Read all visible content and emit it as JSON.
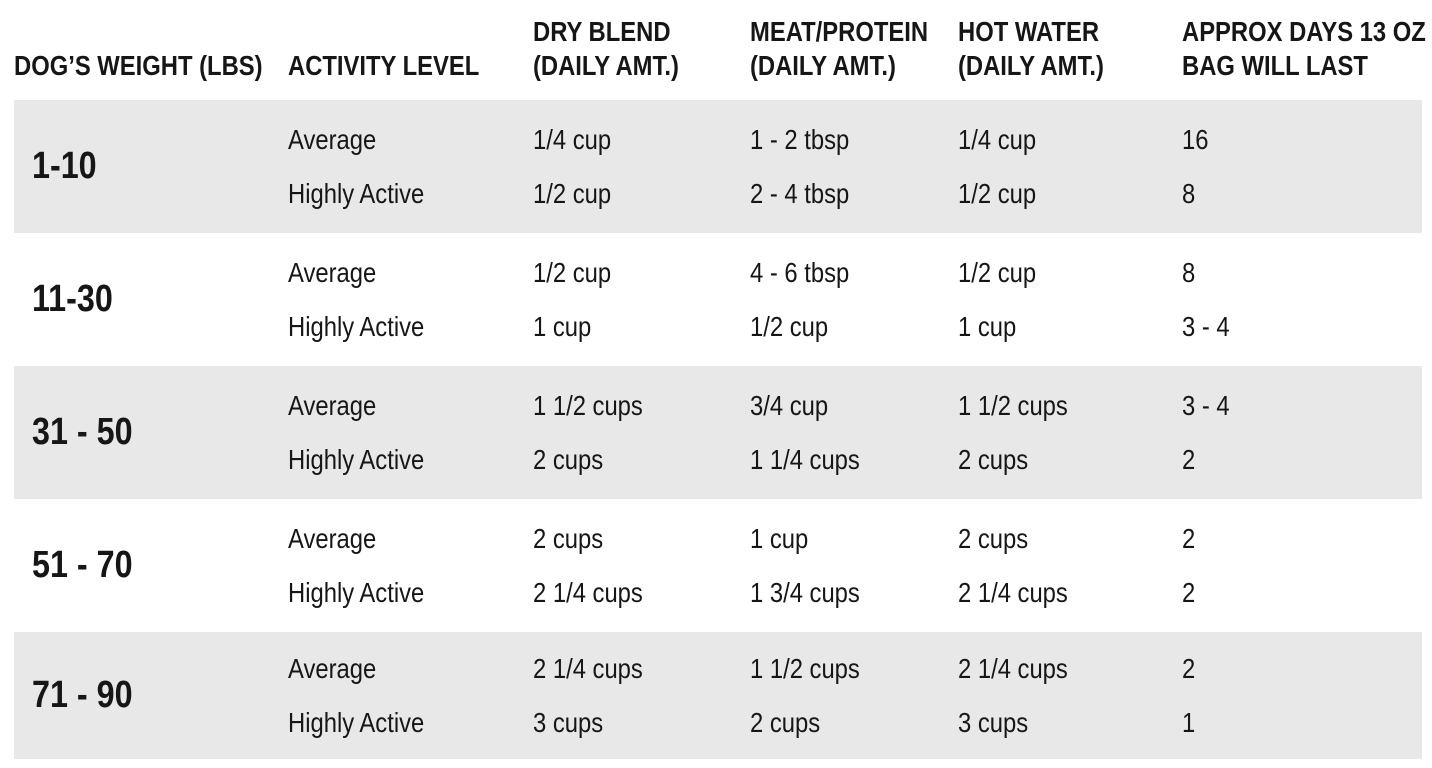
{
  "colors": {
    "band_gray": "#e8e8e8",
    "text": "#161616"
  },
  "table": {
    "columns": [
      {
        "id": "weight",
        "lines": [
          "DOG’S WEIGHT (LBS)"
        ]
      },
      {
        "id": "activity",
        "lines": [
          "ACTIVITY LEVEL"
        ]
      },
      {
        "id": "dry",
        "lines": [
          "DRY BLEND",
          "(DAILY AMT.)"
        ]
      },
      {
        "id": "meat",
        "lines": [
          "MEAT/PROTEIN",
          "(DAILY AMT.)"
        ]
      },
      {
        "id": "water",
        "lines": [
          "HOT WATER",
          "(DAILY AMT.)"
        ]
      },
      {
        "id": "days",
        "lines": [
          "APPROX DAYS 13 OZ",
          "BAG WILL LAST"
        ]
      }
    ],
    "rows": [
      {
        "weight": "1-10",
        "entries": [
          {
            "activity": "Average",
            "dry": "1/4 cup",
            "meat": "1 - 2 tbsp",
            "water": "1/4 cup",
            "days": "16"
          },
          {
            "activity": "Highly Active",
            "dry": "1/2 cup",
            "meat": "2 - 4 tbsp",
            "water": "1/2 cup",
            "days": "8"
          }
        ]
      },
      {
        "weight": "11-30",
        "entries": [
          {
            "activity": "Average",
            "dry": "1/2 cup",
            "meat": "4 - 6 tbsp",
            "water": "1/2 cup",
            "days": "8"
          },
          {
            "activity": "Highly Active",
            "dry": "1 cup",
            "meat": "1/2 cup",
            "water": "1 cup",
            "days": "3 - 4"
          }
        ]
      },
      {
        "weight": "31 - 50",
        "entries": [
          {
            "activity": "Average",
            "dry": "1 1/2 cups",
            "meat": "3/4 cup",
            "water": "1 1/2 cups",
            "days": "3 - 4"
          },
          {
            "activity": "Highly Active",
            "dry": "2 cups",
            "meat": "1 1/4 cups",
            "water": "2 cups",
            "days": "2"
          }
        ]
      },
      {
        "weight": "51 - 70",
        "entries": [
          {
            "activity": "Average",
            "dry": "2 cups",
            "meat": "1 cup",
            "water": "2 cups",
            "days": "2"
          },
          {
            "activity": "Highly Active",
            "dry": "2 1/4 cups",
            "meat": "1 3/4 cups",
            "water": "2 1/4 cups",
            "days": "2"
          }
        ]
      },
      {
        "weight": "71 - 90",
        "entries": [
          {
            "activity": "Average",
            "dry": "2 1/4 cups",
            "meat": "1 1/2 cups",
            "water": "2 1/4 cups",
            "days": "2"
          },
          {
            "activity": "Highly Active",
            "dry": "3 cups",
            "meat": "2 cups",
            "water": "3 cups",
            "days": "1"
          }
        ]
      }
    ]
  },
  "chart_data": {
    "type": "table",
    "columns": [
      "DOG’S WEIGHT (LBS)",
      "ACTIVITY LEVEL",
      "DRY BLEND (DAILY AMT.)",
      "MEAT/PROTEIN (DAILY AMT.)",
      "HOT WATER (DAILY AMT.)",
      "APPROX DAYS 13 OZ BAG WILL LAST"
    ],
    "rows": [
      [
        "1-10",
        "Average",
        "1/4 cup",
        "1 - 2 tbsp",
        "1/4 cup",
        "16"
      ],
      [
        "1-10",
        "Highly Active",
        "1/2 cup",
        "2 - 4 tbsp",
        "1/2 cup",
        "8"
      ],
      [
        "11-30",
        "Average",
        "1/2 cup",
        "4 - 6 tbsp",
        "1/2 cup",
        "8"
      ],
      [
        "11-30",
        "Highly Active",
        "1 cup",
        "1/2 cup",
        "1 cup",
        "3 - 4"
      ],
      [
        "31 - 50",
        "Average",
        "1 1/2 cups",
        "3/4 cup",
        "1 1/2 cups",
        "3 - 4"
      ],
      [
        "31 - 50",
        "Highly Active",
        "2 cups",
        "1 1/4 cups",
        "2 cups",
        "2"
      ],
      [
        "51 - 70",
        "Average",
        "2 cups",
        "1 cup",
        "2 cups",
        "2"
      ],
      [
        "51 - 70",
        "Highly Active",
        "2 1/4 cups",
        "1 3/4 cups",
        "2 1/4 cups",
        "2"
      ],
      [
        "71 - 90",
        "Average",
        "2 1/4 cups",
        "1 1/2 cups",
        "2 1/4 cups",
        "2"
      ],
      [
        "71 - 90",
        "Highly Active",
        "3 cups",
        "2 cups",
        "3 cups",
        "1"
      ]
    ],
    "layout": {
      "striped_rows": true,
      "header_position": "top",
      "alignment": "left"
    }
  }
}
